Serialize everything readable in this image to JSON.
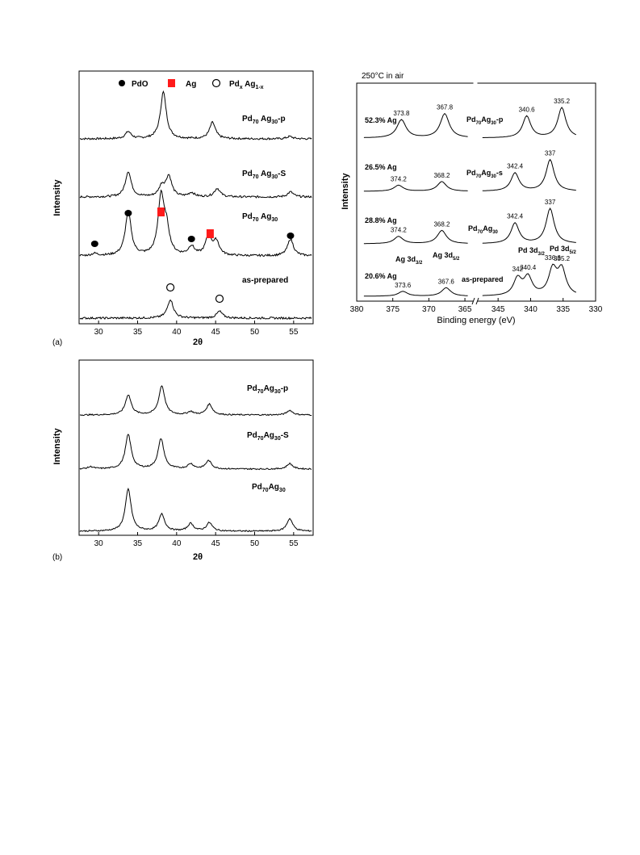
{
  "panel_labels": {
    "a": "(a)",
    "b": "(b)"
  },
  "legend": {
    "pdo": "PdO",
    "ag": "Ag",
    "pdag_main": "Pd",
    "pdag_sub1": "x",
    "pdag_mid": " Ag",
    "pdag_sub2": "1-x"
  },
  "colors": {
    "ag_marker": "#ff1a1a",
    "line": "#000000",
    "frame": "#000000"
  },
  "xrd_a": {
    "xlabel": "2θ",
    "ylabel": "Intensity",
    "traces": [
      {
        "pre": "Pd",
        "s1": "70",
        "mid": " Ag",
        "s2": "30",
        "post": "-p"
      },
      {
        "pre": "Pd",
        "s1": "70",
        "mid": " Ag",
        "s2": "30",
        "post": "-S"
      },
      {
        "pre": "Pd",
        "s1": "70",
        "mid": " Ag",
        "s2": "30",
        "post": ""
      },
      {
        "pre": "as-prepared",
        "s1": "",
        "mid": "",
        "s2": "",
        "post": ""
      }
    ]
  },
  "xrd_b": {
    "xlabel": "2θ",
    "ylabel": "Intensity",
    "traces": [
      {
        "pre": "Pd",
        "s1": "70",
        "mid": "Ag",
        "s2": "30",
        "post": "-p"
      },
      {
        "pre": "Pd",
        "s1": "70",
        "mid": "Ag",
        "s2": "30",
        "post": "-S"
      },
      {
        "pre": "Pd",
        "s1": "70",
        "mid": "Ag",
        "s2": "30",
        "post": ""
      }
    ]
  },
  "xps": {
    "title": "250°C in air",
    "xlabel": "Binding energy (eV)",
    "ylabel": "Intensity",
    "row_labels_ag": [
      "52.3% Ag",
      "26.5% Ag",
      "28.8% Ag",
      "20.6% Ag"
    ],
    "row_labels_pd": [
      {
        "pre": "Pd",
        "s1": "70",
        "mid": "Ag",
        "s2": "30",
        "post": "-p"
      },
      {
        "pre": "Pd",
        "s1": "70",
        "mid": "Ag",
        "s2": "30",
        "post": "-s"
      },
      {
        "pre": "Pd",
        "s1": "70",
        "mid": "Ag",
        "s2": "30",
        "post": ""
      },
      {
        "pre": "as-prepared",
        "s1": "",
        "mid": "",
        "s2": "",
        "post": ""
      }
    ],
    "ag_annot": {
      "d32": "Ag 3d",
      "d32_sub": "3/2",
      "d52": "Ag 3d",
      "d52_sub": "5/2"
    },
    "pd_annot": {
      "d32": "Pd 3d",
      "d32_sub": "3/2",
      "d52": "Pd 3d",
      "d52_sub": "5/2"
    }
  },
  "chart_data": [
    {
      "type": "line",
      "title": "",
      "xlabel": "2θ",
      "ylabel": "Intensity",
      "xlim": [
        27.5,
        57.5
      ],
      "xticks": [
        30,
        35,
        40,
        45,
        50,
        55
      ],
      "series": [
        {
          "name": "Pd70 Ag30-p",
          "peaks": [
            [
              33.8,
              0.15
            ],
            [
              38.3,
              1.0
            ],
            [
              44.6,
              0.35
            ],
            [
              54.5,
              0.05
            ]
          ]
        },
        {
          "name": "Pd70 Ag30-S",
          "peaks": [
            [
              33.8,
              0.75
            ],
            [
              38.1,
              0.3
            ],
            [
              39.0,
              0.6
            ],
            [
              41.9,
              0.12
            ],
            [
              45.2,
              0.25
            ],
            [
              54.6,
              0.15
            ]
          ]
        },
        {
          "name": "Pd70 Ag30",
          "peaks": [
            [
              29.5,
              0.05
            ],
            [
              33.8,
              1.0
            ],
            [
              38.0,
              1.3
            ],
            [
              38.7,
              0.55
            ],
            [
              41.9,
              0.2
            ],
            [
              44.1,
              0.45
            ],
            [
              45.1,
              0.3
            ],
            [
              54.6,
              0.38
            ]
          ]
        },
        {
          "name": "as-prepared",
          "peaks": [
            [
              39.2,
              0.55
            ],
            [
              45.5,
              0.2
            ]
          ]
        }
      ],
      "markers": [
        {
          "label": "PdO",
          "x": [
            29.5,
            33.8,
            41.9,
            54.6
          ]
        },
        {
          "label": "Ag",
          "x": [
            38.0,
            44.3
          ]
        },
        {
          "label": "Pdx Ag1-x",
          "x": [
            39.2,
            45.5
          ]
        }
      ]
    },
    {
      "type": "line",
      "title": "",
      "xlabel": "2θ",
      "ylabel": "Intensity",
      "xlim": [
        27.5,
        57.5
      ],
      "xticks": [
        30,
        35,
        40,
        45,
        50,
        55
      ],
      "series": [
        {
          "name": "Pd70Ag30-p",
          "peaks": [
            [
              33.8,
              0.65
            ],
            [
              38.1,
              0.95
            ],
            [
              41.8,
              0.1
            ],
            [
              44.2,
              0.35
            ],
            [
              54.5,
              0.15
            ]
          ]
        },
        {
          "name": "Pd70Ag30-S",
          "peaks": [
            [
              29.0,
              0.08
            ],
            [
              33.8,
              1.25
            ],
            [
              38.0,
              1.1
            ],
            [
              41.8,
              0.18
            ],
            [
              44.1,
              0.3
            ],
            [
              54.5,
              0.2
            ]
          ]
        },
        {
          "name": "Pd70Ag30",
          "peaks": [
            [
              33.8,
              1.0
            ],
            [
              38.1,
              0.4
            ],
            [
              41.8,
              0.18
            ],
            [
              44.2,
              0.2
            ],
            [
              54.5,
              0.3
            ]
          ]
        }
      ]
    },
    {
      "type": "line",
      "title": "250°C in air",
      "xlabel": "Binding energy (eV)",
      "ylabel": "Intensity",
      "xlim": [
        380,
        330
      ],
      "xticks": [
        380,
        375,
        370,
        365,
        345,
        340,
        335,
        330
      ],
      "x_break": [
        364,
        348
      ],
      "series": [
        {
          "name": "Pd70Ag30-p",
          "ag_percent": "52.3% Ag",
          "peaks": [
            [
              373.8,
              0.75
            ],
            [
              367.8,
              1.0
            ],
            [
              340.6,
              0.9
            ],
            [
              335.2,
              1.25
            ]
          ]
        },
        {
          "name": "Pd70Ag30-s",
          "ag_percent": "26.5% Ag",
          "peaks": [
            [
              374.2,
              0.25
            ],
            [
              368.2,
              0.4
            ],
            [
              342.4,
              0.75
            ],
            [
              337,
              1.3
            ]
          ]
        },
        {
          "name": "Pd70Ag30",
          "ag_percent": "28.8% Ag",
          "peaks": [
            [
              374.2,
              0.3
            ],
            [
              368.2,
              0.55
            ],
            [
              342.4,
              0.85
            ],
            [
              337,
              1.45
            ]
          ]
        },
        {
          "name": "as-prepared",
          "ag_percent": "20.6% Ag",
          "peaks": [
            [
              373.6,
              0.2
            ],
            [
              367.6,
              0.35
            ],
            [
              342,
              0.7
            ],
            [
              340.4,
              0.75
            ],
            [
              336.6,
              1.05
            ],
            [
              335.2,
              1.05
            ]
          ]
        }
      ],
      "peak_labels": [
        [
          "373.8",
          "367.8",
          "340.6",
          "335.2"
        ],
        [
          "374.2",
          "368.2",
          "342.4",
          "337"
        ],
        [
          "374.2",
          "368.2",
          "342.4",
          "337"
        ],
        [
          "373.6",
          "367.6",
          "342",
          "340.4",
          "336.6",
          "335.2"
        ]
      ]
    }
  ]
}
